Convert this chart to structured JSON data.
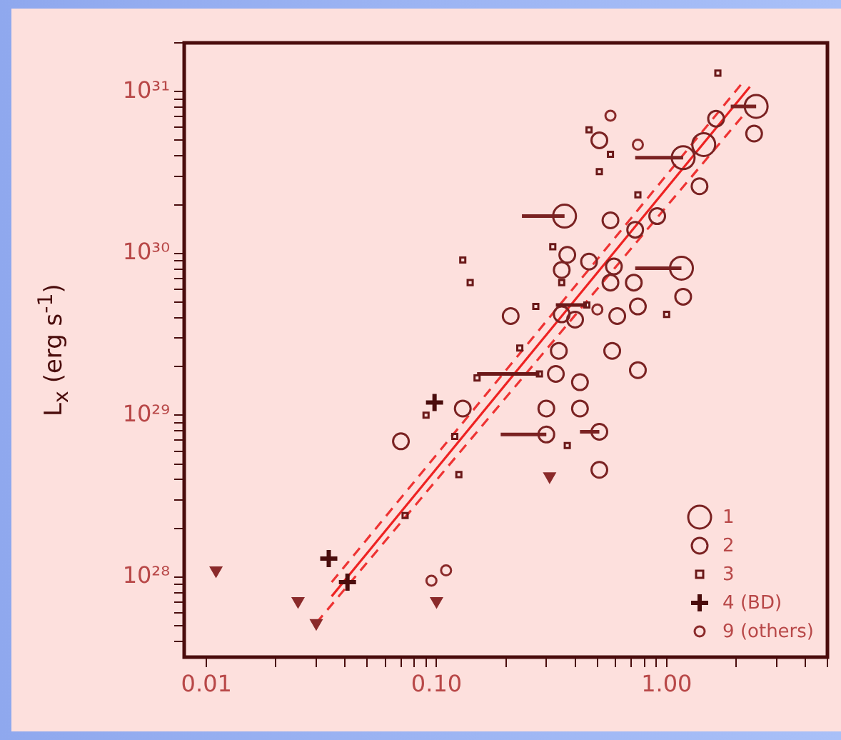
{
  "chart_data": {
    "type": "scatter",
    "ylabel": "L$_{x}$ (erg s$^{-1}$)",
    "log": "xy",
    "grid": false,
    "legend": "bottom right",
    "xlim": [
      0.008,
      5
    ],
    "ylim": [
      3.2e+27,
      2e+31
    ],
    "xticks": [
      {
        "value": 0.01,
        "label": "0.01"
      },
      {
        "value": 0.02,
        "label": null
      },
      {
        "value": 0.03,
        "label": null
      },
      {
        "value": 0.04,
        "label": null
      },
      {
        "value": 0.05,
        "label": null
      },
      {
        "value": 0.06,
        "label": null
      },
      {
        "value": 0.07,
        "label": null
      },
      {
        "value": 0.08,
        "label": null
      },
      {
        "value": 0.09,
        "label": null
      },
      {
        "value": 0.1,
        "label": "0.10"
      },
      {
        "value": 0.2,
        "label": null
      },
      {
        "value": 0.3,
        "label": null
      },
      {
        "value": 0.4,
        "label": null
      },
      {
        "value": 0.5,
        "label": null
      },
      {
        "value": 0.6,
        "label": null
      },
      {
        "value": 0.7,
        "label": null
      },
      {
        "value": 0.8,
        "label": null
      },
      {
        "value": 0.9,
        "label": null
      },
      {
        "value": 1,
        "label": "1.00"
      },
      {
        "value": 2,
        "label": null
      },
      {
        "value": 3,
        "label": null
      },
      {
        "value": 4,
        "label": null
      },
      {
        "value": 5,
        "label": null
      }
    ],
    "yticks": [
      {
        "value": 4e+27,
        "label": null
      },
      {
        "value": 5e+27,
        "label": null
      },
      {
        "value": 6e+27,
        "label": null
      },
      {
        "value": 7e+27,
        "label": null
      },
      {
        "value": 8e+27,
        "label": null
      },
      {
        "value": 9e+27,
        "label": null
      },
      {
        "value": 1e+28,
        "label": "10²⁸"
      },
      {
        "value": 2e+28,
        "label": null
      },
      {
        "value": 3e+28,
        "label": null
      },
      {
        "value": 4e+28,
        "label": null
      },
      {
        "value": 5e+28,
        "label": null
      },
      {
        "value": 6e+28,
        "label": null
      },
      {
        "value": 7e+28,
        "label": null
      },
      {
        "value": 8e+28,
        "label": null
      },
      {
        "value": 9e+28,
        "label": null
      },
      {
        "value": 1e+29,
        "label": "10²⁹"
      },
      {
        "value": 2e+29,
        "label": null
      },
      {
        "value": 3e+29,
        "label": null
      },
      {
        "value": 4e+29,
        "label": null
      },
      {
        "value": 5e+29,
        "label": null
      },
      {
        "value": 6e+29,
        "label": null
      },
      {
        "value": 7e+29,
        "label": null
      },
      {
        "value": 8e+29,
        "label": null
      },
      {
        "value": 9e+29,
        "label": null
      },
      {
        "value": 1e+30,
        "label": "10³⁰"
      },
      {
        "value": 2e+30,
        "label": null
      },
      {
        "value": 3e+30,
        "label": null
      },
      {
        "value": 4e+30,
        "label": null
      },
      {
        "value": 5e+30,
        "label": null
      },
      {
        "value": 6e+30,
        "label": null
      },
      {
        "value": 7e+30,
        "label": null
      },
      {
        "value": 8e+30,
        "label": null
      },
      {
        "value": 9e+30,
        "label": null
      },
      {
        "value": 1e+31,
        "label": "10³¹"
      },
      {
        "value": 2e+31,
        "label": null
      }
    ],
    "series": [
      {
        "name": "1",
        "marker": "circle",
        "color": "#7a2222",
        "x": [
          0.36,
          1.18,
          1.45,
          2.45,
          1.16
        ],
        "values": [
          1.7e+30,
          3.9e+30,
          4.7e+30,
          8.1e+30,
          8.1e+29
        ],
        "xerrors": [
          [
            0.235,
            0.36
          ],
          [
            0.73,
            1.18
          ],
          null,
          [
            1.9,
            2.45
          ],
          [
            0.73,
            1.16
          ]
        ]
      },
      {
        "name": "2",
        "marker": "circle",
        "color": "#7a2222",
        "x": [
          0.07,
          0.13,
          0.21,
          0.3,
          0.3,
          0.34,
          0.33,
          0.42,
          0.42,
          0.51,
          0.51,
          0.58,
          0.75,
          0.37,
          0.35,
          0.46,
          0.57,
          0.59,
          0.72,
          0.75,
          1.18,
          1.39,
          2.4,
          1.64,
          0.51,
          0.35,
          0.4,
          0.61,
          0.91,
          0.73,
          0.57
        ],
        "values": [
          6.9e+28,
          1.1e+29,
          4.1e+29,
          1.1e+29,
          7.6e+28,
          2.5e+29,
          1.8e+29,
          1.1e+29,
          1.6e+29,
          7.9e+28,
          4.6e+28,
          2.5e+29,
          1.9e+29,
          9.8e+29,
          7.9e+29,
          8.9e+29,
          6.6e+29,
          8.3e+29,
          6.6e+29,
          4.7e+29,
          5.4e+29,
          2.6e+30,
          5.5e+30,
          6.8e+30,
          5e+30,
          4.2e+29,
          3.9e+29,
          4.1e+29,
          1.7e+30,
          1.4e+30,
          1.6e+30
        ],
        "xerrors": [
          null,
          null,
          null,
          null,
          [
            0.19,
            0.3
          ],
          null,
          null,
          null,
          null,
          [
            0.42,
            0.51
          ],
          null,
          null,
          null,
          null,
          null,
          null,
          null,
          null,
          null,
          null,
          null,
          null,
          null,
          null,
          null,
          null,
          null,
          null,
          null,
          null,
          null
        ]
      },
      {
        "name": "3",
        "marker": "square",
        "color": "#6a1818",
        "x": [
          0.13,
          0.14,
          0.32,
          0.46,
          0.57,
          0.51,
          0.75,
          1.67,
          0.23,
          0.27,
          0.15,
          0.12,
          0.125,
          0.09,
          0.37,
          0.073,
          1,
          0.35,
          0.45,
          0.28
        ],
        "values": [
          9.1e+29,
          6.6e+29,
          1.1e+30,
          5.8e+30,
          4.1e+30,
          3.2e+30,
          2.3e+30,
          1.3e+31,
          2.6e+29,
          4.7e+29,
          1.7e+29,
          7.4e+28,
          4.3e+28,
          1e+29,
          6.5e+28,
          2.4e+28,
          4.2e+29,
          6.6e+29,
          4.8e+29,
          1.8e+29
        ],
        "xerrors": [
          null,
          null,
          null,
          null,
          null,
          null,
          null,
          null,
          null,
          null,
          null,
          null,
          null,
          null,
          null,
          null,
          null,
          null,
          [
            0.33,
            0.45
          ],
          [
            0.15,
            0.28
          ]
        ]
      },
      {
        "name": "4 (BD)",
        "marker": "cross",
        "color": "#4a0c0c",
        "x": [
          0.034,
          0.041,
          0.098
        ],
        "values": [
          1.3e+28,
          9.3e+27,
          1.2e+29
        ]
      },
      {
        "name": "9 (others)",
        "marker": "circle",
        "color": "#8a2a2a",
        "x": [
          0.095,
          0.11,
          0.57,
          0.75,
          0.5
        ],
        "values": [
          9.5e+27,
          1.1e+28,
          7.1e+30,
          4.7e+30,
          4.5e+29
        ]
      },
      {
        "marker": "triangle",
        "color": "#8a2a2a",
        "x": [
          0.011,
          0.025,
          0.03,
          0.1,
          0.31
        ],
        "values": [
          1.1e+28,
          7.1e+27,
          5.2e+27,
          7.1e+27,
          4.2e+28
        ]
      },
      {
        "type": "line",
        "marker": "none",
        "line_style": "solid",
        "color": "#ee2222",
        "x": [
          0.035,
          2.3
        ],
        "values": [
          7.6e+27,
          1.07e+31
        ]
      },
      {
        "type": "line",
        "marker": "none",
        "line_style": "dashed",
        "color": "#ee3333",
        "x": [
          0.03,
          2.2
        ],
        "values": [
          5.2e+27,
          7.4e+30
        ]
      },
      {
        "type": "line",
        "marker": "none",
        "line_style": "dashed",
        "color": "#ee3333",
        "x": [
          0.035,
          2.1
        ],
        "values": [
          9.3e+27,
          1.1e+31
        ]
      }
    ]
  }
}
